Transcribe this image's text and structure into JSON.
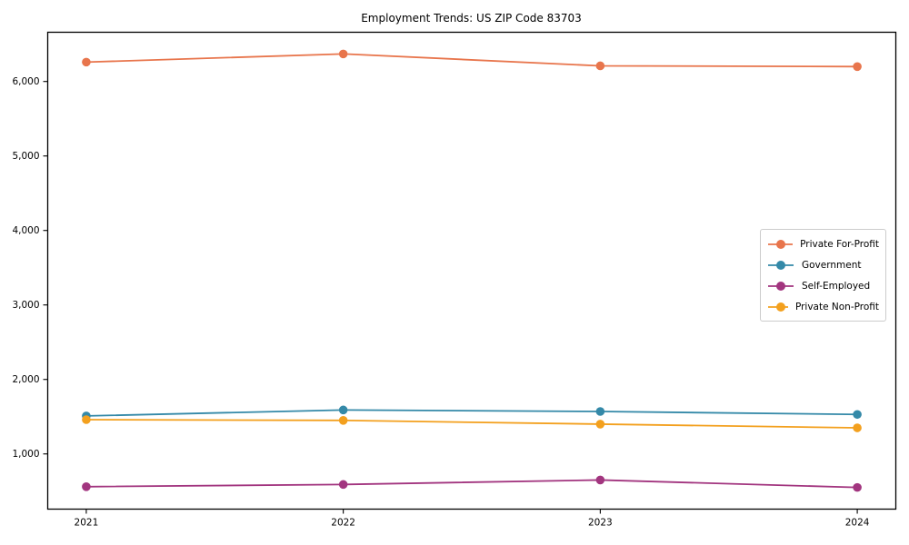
{
  "chart_data": {
    "type": "line",
    "title": "Employment Trends: US ZIP Code 83703",
    "x": [
      "2021",
      "2022",
      "2023",
      "2024"
    ],
    "series": [
      {
        "name": "Private For-Profit",
        "color": "#e8754c",
        "values": [
          6260,
          6370,
          6210,
          6200
        ]
      },
      {
        "name": "Government",
        "color": "#3489a8",
        "values": [
          1510,
          1590,
          1570,
          1530
        ]
      },
      {
        "name": "Self-Employed",
        "color": "#a2357f",
        "values": [
          560,
          590,
          650,
          550
        ]
      },
      {
        "name": "Private Non-Profit",
        "color": "#f3a01e",
        "values": [
          1460,
          1450,
          1400,
          1350
        ]
      }
    ],
    "yticks": [
      1000,
      2000,
      3000,
      4000,
      5000,
      6000
    ],
    "ytick_labels": [
      "1,000",
      "2,000",
      "3,000",
      "4,000",
      "5,000",
      "6,000"
    ],
    "ylim": [
      259,
      6661
    ],
    "xlabel": "",
    "ylabel": "",
    "grid": false,
    "legend_position": "center-right",
    "axis_color": "#000000",
    "legend_border_color": "#cccccc"
  }
}
